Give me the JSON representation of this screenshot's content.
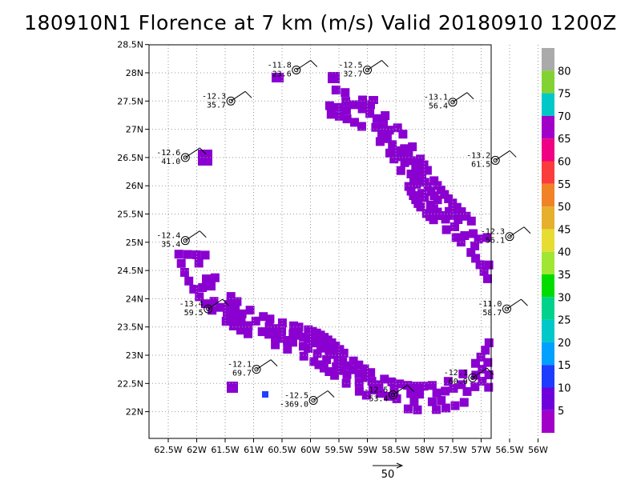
{
  "title": "180910N1 Florence at 7 km (m/s) Valid 20180910 1200Z",
  "axes": {
    "lon_labels": [
      "62.5W",
      "62W",
      "61.5W",
      "61W",
      "60.5W",
      "60W",
      "59.5W",
      "59W",
      "58.5W",
      "58W",
      "57.5W",
      "57W",
      "56.5W",
      "56W"
    ],
    "lat_labels": [
      "28.5N",
      "28N",
      "27.5N",
      "27N",
      "26.5N",
      "26N",
      "25.5N",
      "25N",
      "24.5N",
      "24N",
      "23.5N",
      "23N",
      "22.5N",
      "22N"
    ],
    "lon_range": [
      -62.83,
      -56.0
    ],
    "lat_range": [
      21.6,
      28.5
    ],
    "grid": true
  },
  "colorbar": {
    "labels": [
      "5",
      "10",
      "15",
      "20",
      "25",
      "30",
      "35",
      "40",
      "45",
      "50",
      "55",
      "60",
      "65",
      "70",
      "75",
      "80"
    ],
    "colors": [
      "#a000c8",
      "#6e00dc",
      "#1e3cff",
      "#00a0ff",
      "#00c8c8",
      "#00d28c",
      "#00dc00",
      "#a0e632",
      "#e6dc32",
      "#e6af2d",
      "#f08228",
      "#fa3c3c",
      "#f00082",
      "#a000c8",
      "#00c8c8",
      "#82d232",
      "#aaaaaa"
    ]
  },
  "scale_arrow": {
    "label": "50"
  },
  "observations": [
    {
      "lon": -60.25,
      "lat": 28.05,
      "t": "-11.8",
      "w": "23.6"
    },
    {
      "lon": -59.0,
      "lat": 28.05,
      "t": "-12.5",
      "w": "32.7"
    },
    {
      "lon": -61.4,
      "lat": 27.5,
      "t": "-12.3",
      "w": "35.7"
    },
    {
      "lon": -57.5,
      "lat": 27.48,
      "t": "-13.1",
      "w": "56.4"
    },
    {
      "lon": -62.2,
      "lat": 26.5,
      "t": "-12.6",
      "w": "41.0"
    },
    {
      "lon": -56.75,
      "lat": 26.45,
      "t": "-13.2",
      "w": "61.5"
    },
    {
      "lon": -62.2,
      "lat": 25.03,
      "t": "-12.4",
      "w": "35.4"
    },
    {
      "lon": -56.5,
      "lat": 25.1,
      "t": "-12.3",
      "w": "56.1"
    },
    {
      "lon": -61.8,
      "lat": 23.82,
      "t": "-13.4",
      "w": "59.5"
    },
    {
      "lon": -56.55,
      "lat": 23.82,
      "t": "-11.0",
      "w": "58.7"
    },
    {
      "lon": -60.95,
      "lat": 22.75,
      "t": "-12.1",
      "w": "69.7"
    },
    {
      "lon": -57.15,
      "lat": 22.6,
      "t": "-12.1",
      "w": "60.9"
    },
    {
      "lon": -58.55,
      "lat": 22.3,
      "t": "-12.5",
      "w": "53.4"
    },
    {
      "lon": -59.95,
      "lat": 22.2,
      "t": "-12.5",
      "w": "-369.0"
    }
  ]
}
